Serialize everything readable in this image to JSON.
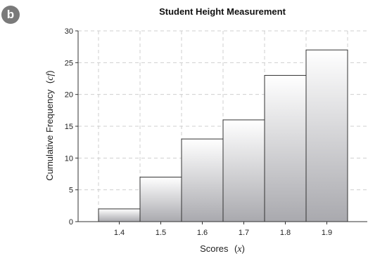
{
  "badge": "b",
  "chart_data": {
    "type": "bar",
    "title": "Student Height Measurement",
    "xlabel": {
      "text": "Scores",
      "var": "x"
    },
    "ylabel": {
      "text": "Cumulative Frequency",
      "var": "cf"
    },
    "categories": [
      "1.4",
      "1.5",
      "1.6",
      "1.7",
      "1.8",
      "1.9"
    ],
    "values": [
      2,
      7,
      13,
      16,
      23,
      27
    ],
    "ylim": [
      0,
      30
    ],
    "yticks": [
      0,
      5,
      10,
      15,
      20,
      25,
      30
    ],
    "grid": true
  }
}
